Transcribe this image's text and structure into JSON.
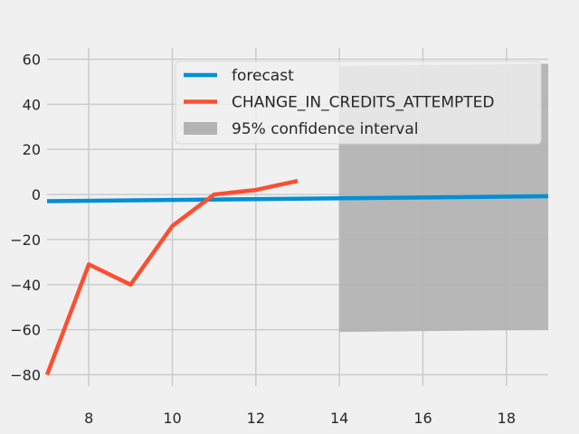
{
  "chart_data": {
    "type": "line",
    "title": "",
    "xlabel": "",
    "ylabel": "",
    "xlim": [
      7,
      19
    ],
    "ylim": [
      -85,
      65
    ],
    "grid": true,
    "legend_placement": "top-right",
    "xticks": [
      "8",
      "10",
      "12",
      "14",
      "16",
      "18"
    ],
    "yticks": [
      "60",
      "40",
      "20",
      "0",
      "−20",
      "−40",
      "−60",
      "−80"
    ],
    "series": [
      {
        "name": "forecast",
        "color": "#008fd5",
        "x": [
          7,
          19
        ],
        "y": [
          -3,
          -0.8
        ]
      },
      {
        "name": "CHANGE_IN_CREDITS_ATTEMPTED",
        "color": "#fc4f30",
        "x": [
          7,
          8,
          9,
          10,
          11,
          12,
          13
        ],
        "y": [
          -80,
          -31,
          -40,
          -14,
          0,
          2,
          6
        ]
      }
    ],
    "confidence_interval": {
      "name": "95% confidence interval",
      "color": "#b3b3b3",
      "x": [
        14,
        19
      ],
      "upper": [
        57,
        58
      ],
      "lower": [
        -61,
        -60
      ]
    }
  }
}
